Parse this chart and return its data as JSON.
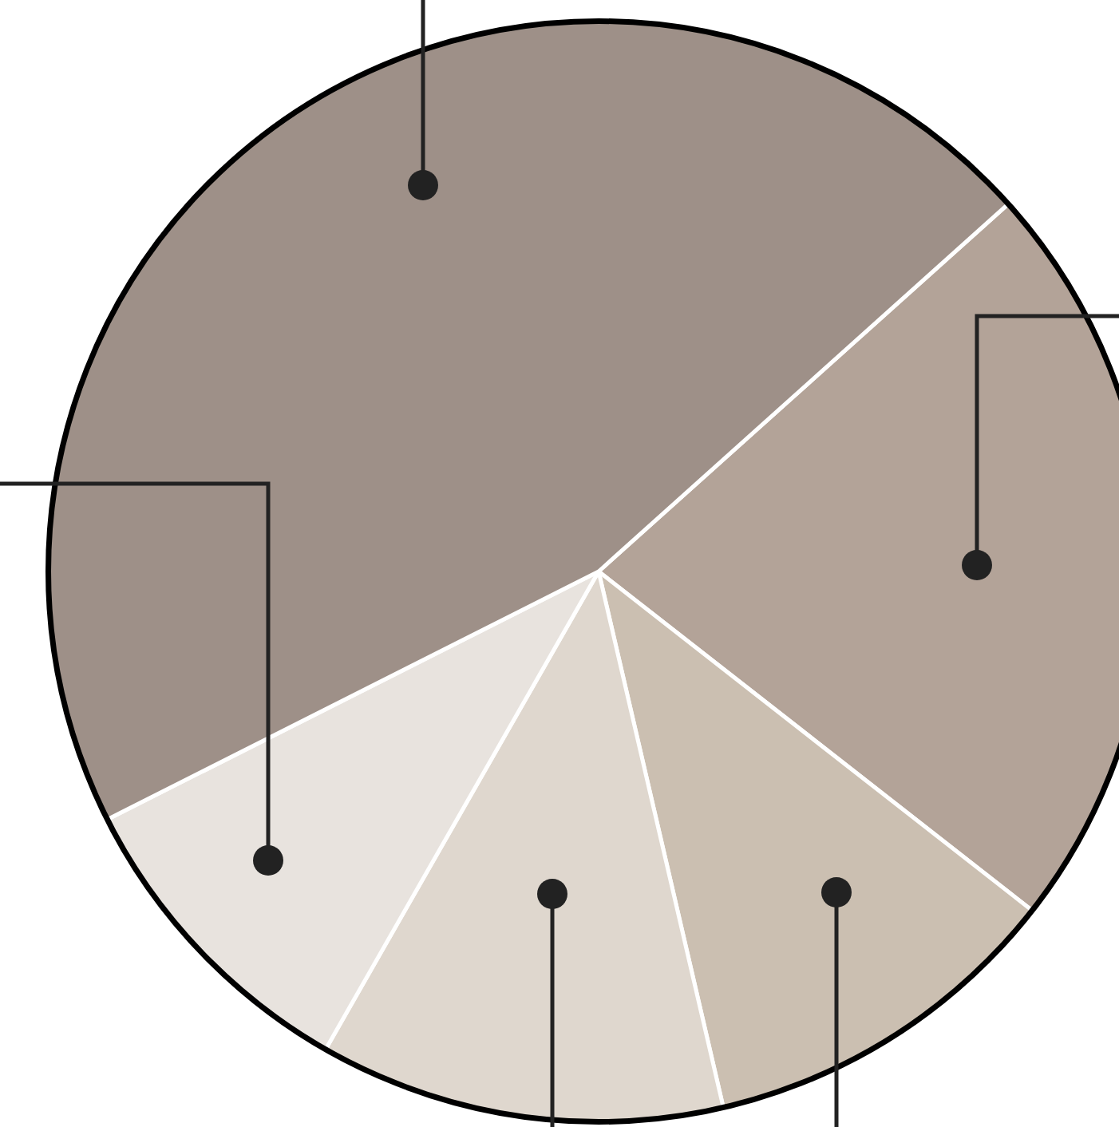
{
  "chart_data": {
    "type": "pie",
    "categories": [
      null,
      null,
      null,
      null,
      null
    ],
    "values": [
      22.2,
      10.8,
      11.9,
      9.3,
      45.8
    ],
    "colors": [
      "#b3a398",
      "#cbbfb1",
      "#dfd7ce",
      "#e8e3de",
      "#9e9088"
    ]
  }
}
